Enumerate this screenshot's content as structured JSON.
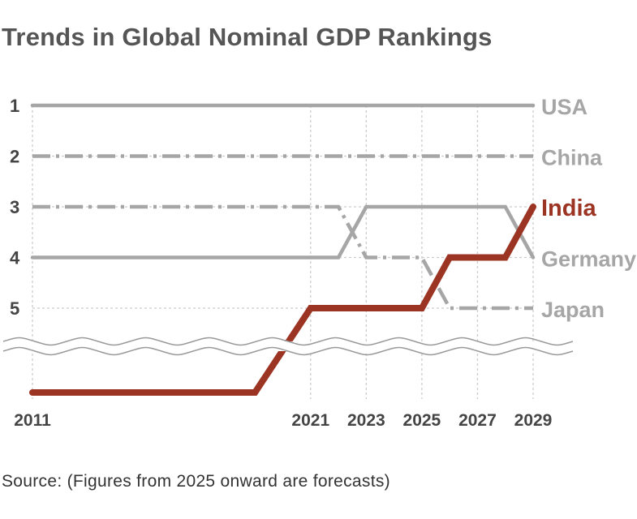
{
  "title": "Trends in Global Nominal GDP Rankings",
  "source": "Source: (Figures from 2025 onward are forecasts)",
  "chart_data": {
    "type": "line",
    "title": "Trends in Global Nominal GDP Rankings",
    "xlabel": "",
    "ylabel": "",
    "x_ticks": [
      2011,
      2021,
      2023,
      2025,
      2027,
      2029
    ],
    "y_ticks": [
      "1",
      "2",
      "3",
      "4",
      "5"
    ],
    "ylim": [
      1,
      5
    ],
    "y_inverted": true,
    "axis_break": "below rank 5",
    "grid": true,
    "legend": "labels at line ends (right)",
    "colors": {
      "highlight": "#9c3423",
      "other": "#a6a6a6",
      "grid": "#cccccc"
    },
    "series": [
      {
        "name": "USA",
        "style": "solid",
        "points": [
          [
            2011,
            1
          ],
          [
            2029,
            1
          ]
        ]
      },
      {
        "name": "China",
        "style": "dash-dot",
        "points": [
          [
            2011,
            2
          ],
          [
            2029,
            2
          ]
        ]
      },
      {
        "name": "India",
        "style": "solid-highlight",
        "points": [
          [
            2011,
            "below 5"
          ],
          [
            2019,
            "below 5"
          ],
          [
            2021,
            5
          ],
          [
            2025,
            5
          ],
          [
            2026,
            4
          ],
          [
            2028,
            4
          ],
          [
            2029,
            3
          ]
        ]
      },
      {
        "name": "Germany",
        "style": "solid",
        "points": [
          [
            2011,
            4
          ],
          [
            2022,
            4
          ],
          [
            2023,
            3
          ],
          [
            2028,
            3
          ],
          [
            2029,
            4
          ]
        ]
      },
      {
        "name": "Japan",
        "style": "dash-dot",
        "points": [
          [
            2011,
            3
          ],
          [
            2022,
            3
          ],
          [
            2023,
            4
          ],
          [
            2025,
            4
          ],
          [
            2026,
            5
          ],
          [
            2029,
            5
          ]
        ]
      }
    ]
  }
}
